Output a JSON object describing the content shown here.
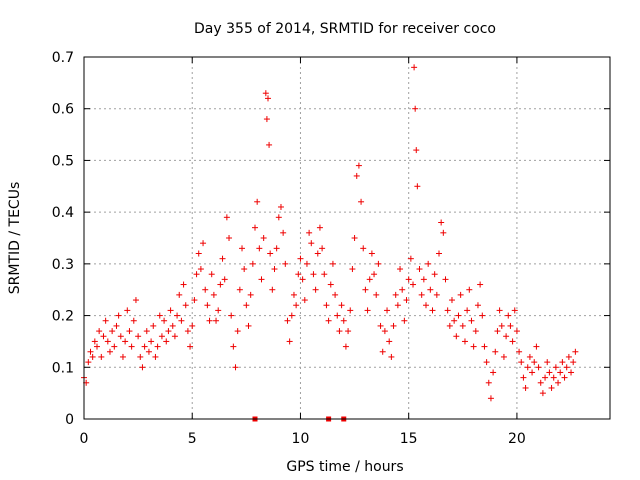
{
  "chart_data": {
    "type": "scatter",
    "title": "Day 355 of 2014, SRMTID for receiver coco",
    "xlabel": "GPS time / hours",
    "ylabel": "SRMTID / TECUs",
    "xlim": [
      0,
      24.3
    ],
    "ylim": [
      0,
      0.7
    ],
    "xticks": [
      0,
      5,
      10,
      15,
      20
    ],
    "xtick_labels": [
      "0",
      "5",
      "10",
      "15",
      "20"
    ],
    "yticks": [
      0,
      0.1,
      0.2,
      0.3,
      0.4,
      0.5,
      0.6,
      0.7
    ],
    "ytick_labels": [
      "0",
      "0.1",
      "0.2",
      "0.3",
      "0.4",
      "0.5",
      "0.6",
      "0.7"
    ],
    "grid": true,
    "marker": "plus",
    "color": "#ee0000",
    "series": [
      {
        "name": "SRMTID",
        "points": [
          [
            0.0,
            0.08
          ],
          [
            0.1,
            0.07
          ],
          [
            0.2,
            0.11
          ],
          [
            0.3,
            0.13
          ],
          [
            0.4,
            0.12
          ],
          [
            0.5,
            0.15
          ],
          [
            0.6,
            0.14
          ],
          [
            0.7,
            0.17
          ],
          [
            0.8,
            0.12
          ],
          [
            0.9,
            0.16
          ],
          [
            1.0,
            0.19
          ],
          [
            1.1,
            0.15
          ],
          [
            1.2,
            0.13
          ],
          [
            1.3,
            0.17
          ],
          [
            1.4,
            0.14
          ],
          [
            1.5,
            0.18
          ],
          [
            1.6,
            0.2
          ],
          [
            1.7,
            0.16
          ],
          [
            1.8,
            0.12
          ],
          [
            1.9,
            0.15
          ],
          [
            2.0,
            0.21
          ],
          [
            2.1,
            0.17
          ],
          [
            2.2,
            0.14
          ],
          [
            2.3,
            0.19
          ],
          [
            2.4,
            0.23
          ],
          [
            2.5,
            0.16
          ],
          [
            2.6,
            0.12
          ],
          [
            2.7,
            0.1
          ],
          [
            2.8,
            0.14
          ],
          [
            2.9,
            0.17
          ],
          [
            3.0,
            0.13
          ],
          [
            3.1,
            0.15
          ],
          [
            3.2,
            0.18
          ],
          [
            3.3,
            0.12
          ],
          [
            3.4,
            0.14
          ],
          [
            3.5,
            0.2
          ],
          [
            3.6,
            0.16
          ],
          [
            3.7,
            0.19
          ],
          [
            3.8,
            0.15
          ],
          [
            3.9,
            0.17
          ],
          [
            4.0,
            0.21
          ],
          [
            4.1,
            0.18
          ],
          [
            4.2,
            0.16
          ],
          [
            4.3,
            0.2
          ],
          [
            4.4,
            0.24
          ],
          [
            4.5,
            0.19
          ],
          [
            4.6,
            0.26
          ],
          [
            4.7,
            0.22
          ],
          [
            4.8,
            0.17
          ],
          [
            4.9,
            0.14
          ],
          [
            5.0,
            0.18
          ],
          [
            5.1,
            0.23
          ],
          [
            5.2,
            0.28
          ],
          [
            5.3,
            0.32
          ],
          [
            5.4,
            0.29
          ],
          [
            5.5,
            0.34
          ],
          [
            5.6,
            0.25
          ],
          [
            5.7,
            0.22
          ],
          [
            5.8,
            0.19
          ],
          [
            5.9,
            0.28
          ],
          [
            6.0,
            0.24
          ],
          [
            6.1,
            0.19
          ],
          [
            6.2,
            0.21
          ],
          [
            6.3,
            0.26
          ],
          [
            6.4,
            0.31
          ],
          [
            6.5,
            0.27
          ],
          [
            6.6,
            0.39
          ],
          [
            6.7,
            0.35
          ],
          [
            6.8,
            0.2
          ],
          [
            6.9,
            0.14
          ],
          [
            7.0,
            0.1
          ],
          [
            7.1,
            0.17
          ],
          [
            7.2,
            0.25
          ],
          [
            7.3,
            0.33
          ],
          [
            7.4,
            0.29
          ],
          [
            7.5,
            0.22
          ],
          [
            7.6,
            0.18
          ],
          [
            7.7,
            0.24
          ],
          [
            7.8,
            0.3
          ],
          [
            7.9,
            0.37
          ],
          [
            8.0,
            0.42
          ],
          [
            8.1,
            0.33
          ],
          [
            8.2,
            0.27
          ],
          [
            8.3,
            0.35
          ],
          [
            8.4,
            0.63
          ],
          [
            8.45,
            0.58
          ],
          [
            8.5,
            0.62
          ],
          [
            8.55,
            0.53
          ],
          [
            8.6,
            0.32
          ],
          [
            8.7,
            0.25
          ],
          [
            8.8,
            0.29
          ],
          [
            8.9,
            0.33
          ],
          [
            9.0,
            0.39
          ],
          [
            9.1,
            0.41
          ],
          [
            9.2,
            0.36
          ],
          [
            9.3,
            0.3
          ],
          [
            9.4,
            0.19
          ],
          [
            9.5,
            0.15
          ],
          [
            9.6,
            0.2
          ],
          [
            9.7,
            0.24
          ],
          [
            9.8,
            0.22
          ],
          [
            9.9,
            0.28
          ],
          [
            10.0,
            0.31
          ],
          [
            10.1,
            0.27
          ],
          [
            10.2,
            0.23
          ],
          [
            10.3,
            0.3
          ],
          [
            10.4,
            0.36
          ],
          [
            10.5,
            0.34
          ],
          [
            10.6,
            0.28
          ],
          [
            10.7,
            0.25
          ],
          [
            10.8,
            0.32
          ],
          [
            10.9,
            0.37
          ],
          [
            11.0,
            0.33
          ],
          [
            11.1,
            0.28
          ],
          [
            11.2,
            0.22
          ],
          [
            11.3,
            0.19
          ],
          [
            11.4,
            0.26
          ],
          [
            11.5,
            0.3
          ],
          [
            11.6,
            0.24
          ],
          [
            11.7,
            0.2
          ],
          [
            11.8,
            0.17
          ],
          [
            11.9,
            0.22
          ],
          [
            12.0,
            0.19
          ],
          [
            12.1,
            0.14
          ],
          [
            12.2,
            0.17
          ],
          [
            12.3,
            0.21
          ],
          [
            12.4,
            0.29
          ],
          [
            12.5,
            0.35
          ],
          [
            12.6,
            0.47
          ],
          [
            12.7,
            0.49
          ],
          [
            12.8,
            0.42
          ],
          [
            12.9,
            0.33
          ],
          [
            13.0,
            0.25
          ],
          [
            13.1,
            0.21
          ],
          [
            13.2,
            0.27
          ],
          [
            13.3,
            0.32
          ],
          [
            13.4,
            0.28
          ],
          [
            13.5,
            0.24
          ],
          [
            13.6,
            0.3
          ],
          [
            13.7,
            0.18
          ],
          [
            13.8,
            0.13
          ],
          [
            13.9,
            0.17
          ],
          [
            14.0,
            0.21
          ],
          [
            14.1,
            0.15
          ],
          [
            14.2,
            0.12
          ],
          [
            14.3,
            0.18
          ],
          [
            14.4,
            0.24
          ],
          [
            14.5,
            0.22
          ],
          [
            14.6,
            0.29
          ],
          [
            14.7,
            0.25
          ],
          [
            14.8,
            0.19
          ],
          [
            14.9,
            0.23
          ],
          [
            15.0,
            0.27
          ],
          [
            15.1,
            0.31
          ],
          [
            15.2,
            0.26
          ],
          [
            15.25,
            0.68
          ],
          [
            15.3,
            0.6
          ],
          [
            15.35,
            0.52
          ],
          [
            15.4,
            0.45
          ],
          [
            15.5,
            0.29
          ],
          [
            15.6,
            0.24
          ],
          [
            15.7,
            0.27
          ],
          [
            15.8,
            0.22
          ],
          [
            15.9,
            0.3
          ],
          [
            16.0,
            0.25
          ],
          [
            16.1,
            0.21
          ],
          [
            16.2,
            0.28
          ],
          [
            16.3,
            0.24
          ],
          [
            16.4,
            0.32
          ],
          [
            16.5,
            0.38
          ],
          [
            16.6,
            0.36
          ],
          [
            16.7,
            0.27
          ],
          [
            16.8,
            0.21
          ],
          [
            16.9,
            0.18
          ],
          [
            17.0,
            0.23
          ],
          [
            17.1,
            0.19
          ],
          [
            17.2,
            0.16
          ],
          [
            17.3,
            0.2
          ],
          [
            17.4,
            0.24
          ],
          [
            17.5,
            0.18
          ],
          [
            17.6,
            0.15
          ],
          [
            17.7,
            0.21
          ],
          [
            17.8,
            0.25
          ],
          [
            17.9,
            0.19
          ],
          [
            18.0,
            0.14
          ],
          [
            18.1,
            0.17
          ],
          [
            18.2,
            0.22
          ],
          [
            18.3,
            0.26
          ],
          [
            18.4,
            0.2
          ],
          [
            18.5,
            0.14
          ],
          [
            18.6,
            0.11
          ],
          [
            18.7,
            0.07
          ],
          [
            18.8,
            0.04
          ],
          [
            18.9,
            0.09
          ],
          [
            19.0,
            0.13
          ],
          [
            19.1,
            0.17
          ],
          [
            19.2,
            0.21
          ],
          [
            19.3,
            0.18
          ],
          [
            19.4,
            0.12
          ],
          [
            19.5,
            0.16
          ],
          [
            19.6,
            0.2
          ],
          [
            19.7,
            0.18
          ],
          [
            19.8,
            0.15
          ],
          [
            19.9,
            0.21
          ],
          [
            20.0,
            0.17
          ],
          [
            20.1,
            0.13
          ],
          [
            20.2,
            0.11
          ],
          [
            20.3,
            0.08
          ],
          [
            20.4,
            0.06
          ],
          [
            20.5,
            0.1
          ],
          [
            20.6,
            0.12
          ],
          [
            20.7,
            0.09
          ],
          [
            20.8,
            0.11
          ],
          [
            20.9,
            0.14
          ],
          [
            21.0,
            0.1
          ],
          [
            21.1,
            0.07
          ],
          [
            21.2,
            0.05
          ],
          [
            21.3,
            0.08
          ],
          [
            21.4,
            0.11
          ],
          [
            21.5,
            0.09
          ],
          [
            21.6,
            0.06
          ],
          [
            21.7,
            0.08
          ],
          [
            21.8,
            0.1
          ],
          [
            21.9,
            0.07
          ],
          [
            22.0,
            0.09
          ],
          [
            22.1,
            0.11
          ],
          [
            22.2,
            0.08
          ],
          [
            22.3,
            0.1
          ],
          [
            22.4,
            0.12
          ],
          [
            22.5,
            0.09
          ],
          [
            22.6,
            0.11
          ],
          [
            22.7,
            0.13
          ],
          [
            7.9,
            0.0
          ],
          [
            11.3,
            0.0
          ],
          [
            12.0,
            0.0
          ]
        ]
      }
    ]
  }
}
